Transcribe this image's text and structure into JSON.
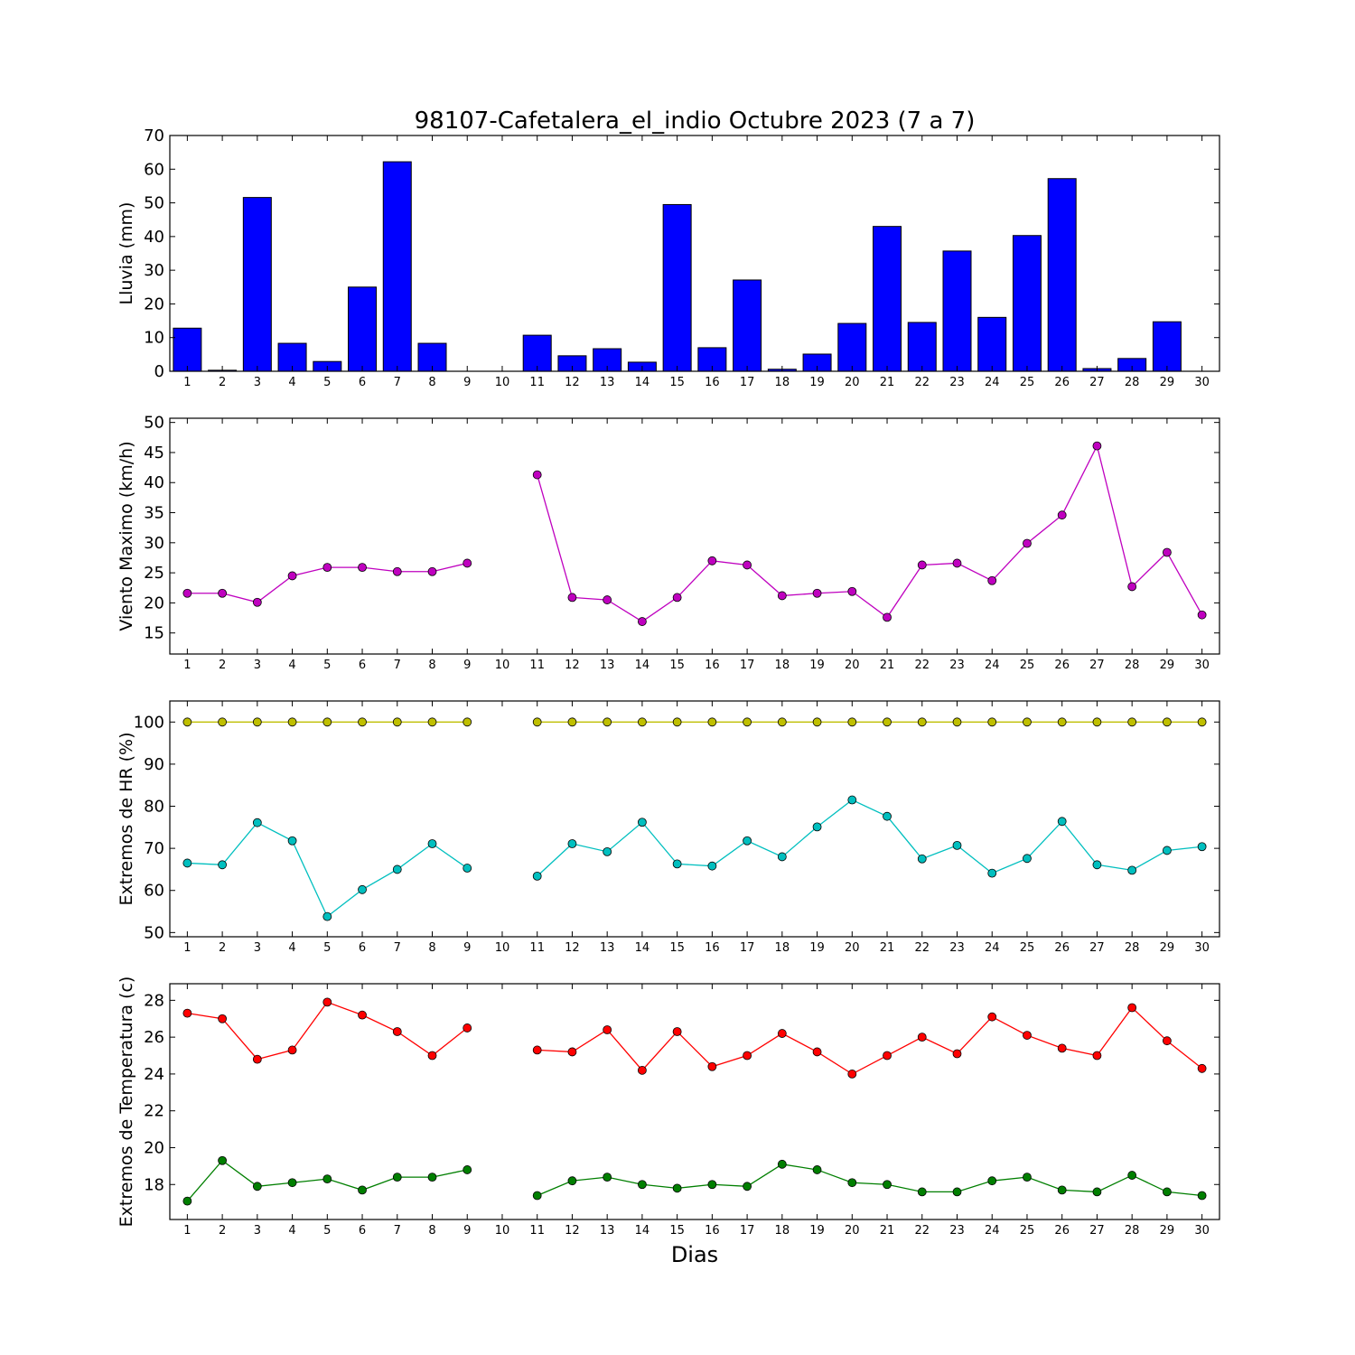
{
  "title": "98107-Cafetalera_el_indio Octubre 2023  (7 a 7)",
  "xlabel": "Dias",
  "chart_data": [
    {
      "type": "bar",
      "ylabel": "Lluvia (mm)",
      "x": [
        1,
        2,
        3,
        4,
        5,
        6,
        7,
        8,
        9,
        10,
        11,
        12,
        13,
        14,
        15,
        16,
        17,
        18,
        19,
        20,
        21,
        22,
        23,
        24,
        25,
        26,
        27,
        28,
        29,
        30
      ],
      "xticks": [
        1,
        2,
        3,
        4,
        5,
        6,
        7,
        8,
        9,
        10,
        11,
        12,
        13,
        14,
        15,
        16,
        17,
        18,
        19,
        20,
        21,
        22,
        23,
        24,
        25,
        26,
        27,
        28,
        29,
        30
      ],
      "ylim": [
        0,
        70
      ],
      "yticks": [
        0,
        10,
        20,
        30,
        40,
        50,
        60,
        70
      ],
      "series": [
        {
          "color": "#0000ff",
          "values": [
            12.8,
            0.3,
            51.6,
            8.3,
            2.9,
            25.0,
            62.2,
            8.3,
            0,
            0,
            10.7,
            4.6,
            6.7,
            2.7,
            49.5,
            7.0,
            27.1,
            0.6,
            5.1,
            14.2,
            43.0,
            14.5,
            35.7,
            16.0,
            40.3,
            57.2,
            0.8,
            3.8,
            14.7,
            0
          ]
        }
      ]
    },
    {
      "type": "line",
      "ylabel": "Viento Maximo (km/h)",
      "x": [
        1,
        2,
        3,
        4,
        5,
        6,
        7,
        8,
        9,
        10,
        11,
        12,
        13,
        14,
        15,
        16,
        17,
        18,
        19,
        20,
        21,
        22,
        23,
        24,
        25,
        26,
        27,
        28,
        29,
        30
      ],
      "xticks": [
        1,
        2,
        3,
        4,
        5,
        6,
        7,
        8,
        9,
        10,
        11,
        12,
        13,
        14,
        15,
        16,
        17,
        18,
        19,
        20,
        21,
        22,
        23,
        24,
        25,
        26,
        27,
        28,
        29,
        30
      ],
      "ylim": [
        11.5,
        50.7
      ],
      "yticks": [
        15,
        20,
        25,
        30,
        35,
        40,
        45,
        50
      ],
      "series": [
        {
          "color": "#bf00bf",
          "values": [
            21.6,
            21.6,
            20.1,
            24.5,
            25.9,
            25.9,
            25.2,
            25.2,
            26.6,
            null,
            41.3,
            20.9,
            20.5,
            16.9,
            20.9,
            27.0,
            26.3,
            21.2,
            21.6,
            21.9,
            17.6,
            26.3,
            26.6,
            23.7,
            29.9,
            34.6,
            46.1,
            22.7,
            28.4,
            18.0
          ]
        }
      ]
    },
    {
      "type": "line",
      "ylabel": "Extremos de HR (%)",
      "x": [
        1,
        2,
        3,
        4,
        5,
        6,
        7,
        8,
        9,
        10,
        11,
        12,
        13,
        14,
        15,
        16,
        17,
        18,
        19,
        20,
        21,
        22,
        23,
        24,
        25,
        26,
        27,
        28,
        29,
        30
      ],
      "xticks": [
        1,
        2,
        3,
        4,
        5,
        6,
        7,
        8,
        9,
        10,
        11,
        12,
        13,
        14,
        15,
        16,
        17,
        18,
        19,
        20,
        21,
        22,
        23,
        24,
        25,
        26,
        27,
        28,
        29,
        30
      ],
      "ylim": [
        49,
        105
      ],
      "yticks": [
        50,
        60,
        70,
        80,
        90,
        100
      ],
      "series": [
        {
          "color": "#bfbf00",
          "values": [
            100,
            100,
            100,
            100,
            100,
            100,
            100,
            100,
            100,
            null,
            100,
            100,
            100,
            100,
            100,
            100,
            100,
            100,
            100,
            100,
            100,
            100,
            100,
            100,
            100,
            100,
            100,
            100,
            100,
            100
          ]
        },
        {
          "color": "#00bfbf",
          "values": [
            66.5,
            66.1,
            76.1,
            71.8,
            53.8,
            60.2,
            65.0,
            71.1,
            65.3,
            null,
            63.4,
            71.1,
            69.2,
            76.2,
            66.3,
            65.8,
            71.8,
            68.0,
            75.1,
            81.5,
            77.6,
            67.5,
            70.7,
            64.1,
            67.6,
            76.4,
            66.1,
            64.8,
            69.5,
            70.4
          ]
        }
      ]
    },
    {
      "type": "line",
      "ylabel": "Extremos de Temperatura (c)",
      "x": [
        1,
        2,
        3,
        4,
        5,
        6,
        7,
        8,
        9,
        10,
        11,
        12,
        13,
        14,
        15,
        16,
        17,
        18,
        19,
        20,
        21,
        22,
        23,
        24,
        25,
        26,
        27,
        28,
        29,
        30
      ],
      "xticks": [
        1,
        2,
        3,
        4,
        5,
        6,
        7,
        8,
        9,
        10,
        11,
        12,
        13,
        14,
        15,
        16,
        17,
        18,
        19,
        20,
        21,
        22,
        23,
        24,
        25,
        26,
        27,
        28,
        29,
        30
      ],
      "ylim": [
        16.1,
        28.9
      ],
      "yticks": [
        18,
        20,
        22,
        24,
        26,
        28
      ],
      "series": [
        {
          "color": "#ff0000",
          "values": [
            27.3,
            27.0,
            24.8,
            25.3,
            27.9,
            27.2,
            26.3,
            25.0,
            26.5,
            null,
            25.3,
            25.2,
            26.4,
            24.2,
            26.3,
            24.4,
            25.0,
            26.2,
            25.2,
            24.0,
            25.0,
            26.0,
            25.1,
            27.1,
            26.1,
            25.4,
            25.0,
            27.6,
            25.8,
            24.3
          ]
        },
        {
          "color": "#007f00",
          "values": [
            17.1,
            19.3,
            17.9,
            18.1,
            18.3,
            17.7,
            18.4,
            18.4,
            18.8,
            null,
            17.4,
            18.2,
            18.4,
            18.0,
            17.8,
            18.0,
            17.9,
            19.1,
            18.8,
            18.1,
            18.0,
            17.6,
            17.6,
            18.2,
            18.4,
            17.7,
            17.6,
            18.5,
            17.6,
            17.4
          ]
        }
      ]
    }
  ]
}
